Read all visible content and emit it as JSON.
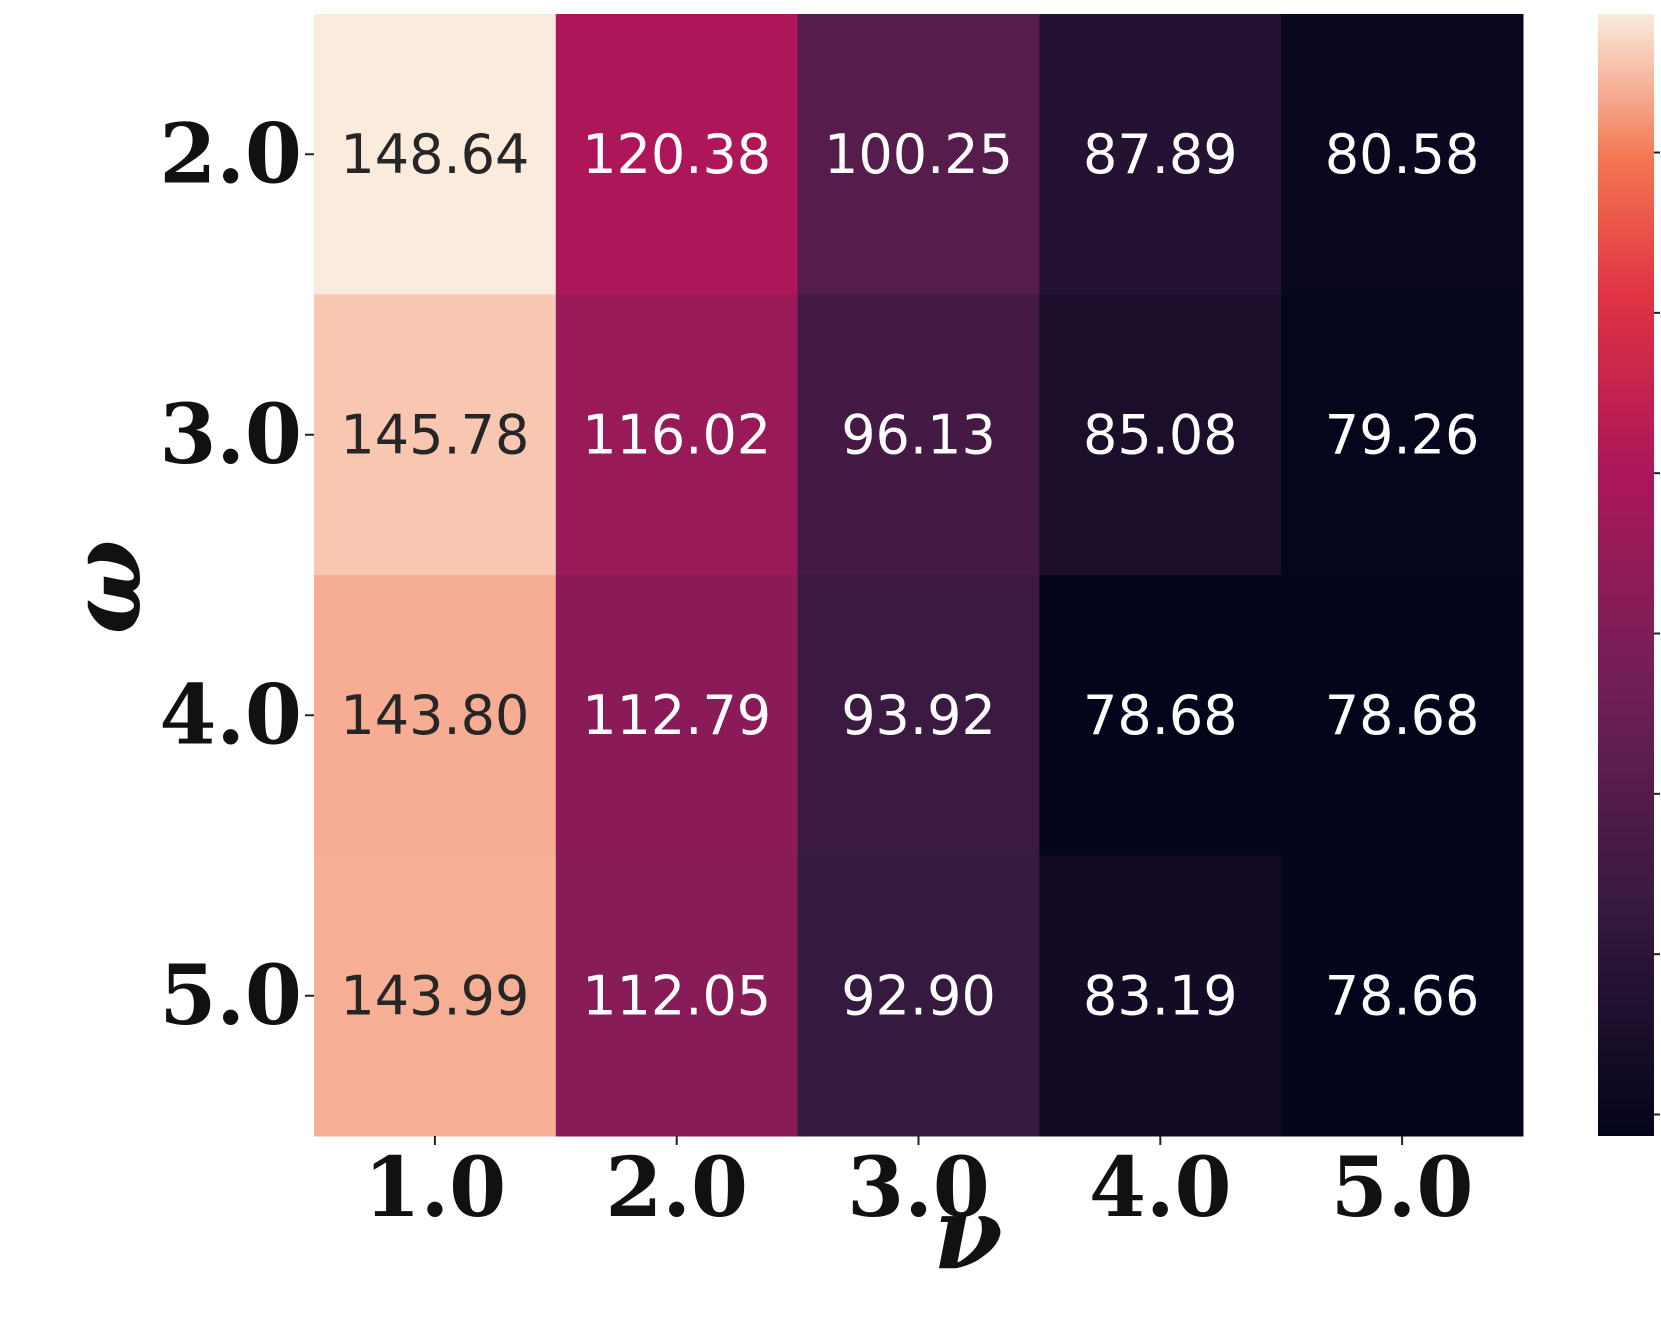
{
  "chart_data": {
    "type": "heatmap",
    "xlabel": "ν",
    "ylabel": "ω",
    "x_categories": [
      "1.0",
      "2.0",
      "3.0",
      "4.0",
      "5.0"
    ],
    "y_categories": [
      "2.0",
      "3.0",
      "4.0",
      "5.0"
    ],
    "values": [
      [
        148.64,
        120.38,
        100.25,
        87.89,
        80.58
      ],
      [
        145.78,
        116.02,
        96.13,
        85.08,
        79.26
      ],
      [
        143.8,
        112.79,
        93.92,
        78.68,
        78.68
      ],
      [
        143.99,
        112.05,
        92.9,
        83.19,
        78.66
      ]
    ],
    "value_labels": [
      [
        "148.64",
        "120.38",
        "100.25",
        "87.89",
        "80.58"
      ],
      [
        "145.78",
        "116.02",
        "96.13",
        "85.08",
        "79.26"
      ],
      [
        "143.80",
        "112.79",
        "93.92",
        "78.68",
        "78.68"
      ],
      [
        "143.99",
        "112.05",
        "92.90",
        "83.19",
        "78.66"
      ]
    ],
    "colormap": "rocket",
    "colorbar": true,
    "colorbar_tick_labels_visible": false,
    "grid": false
  }
}
